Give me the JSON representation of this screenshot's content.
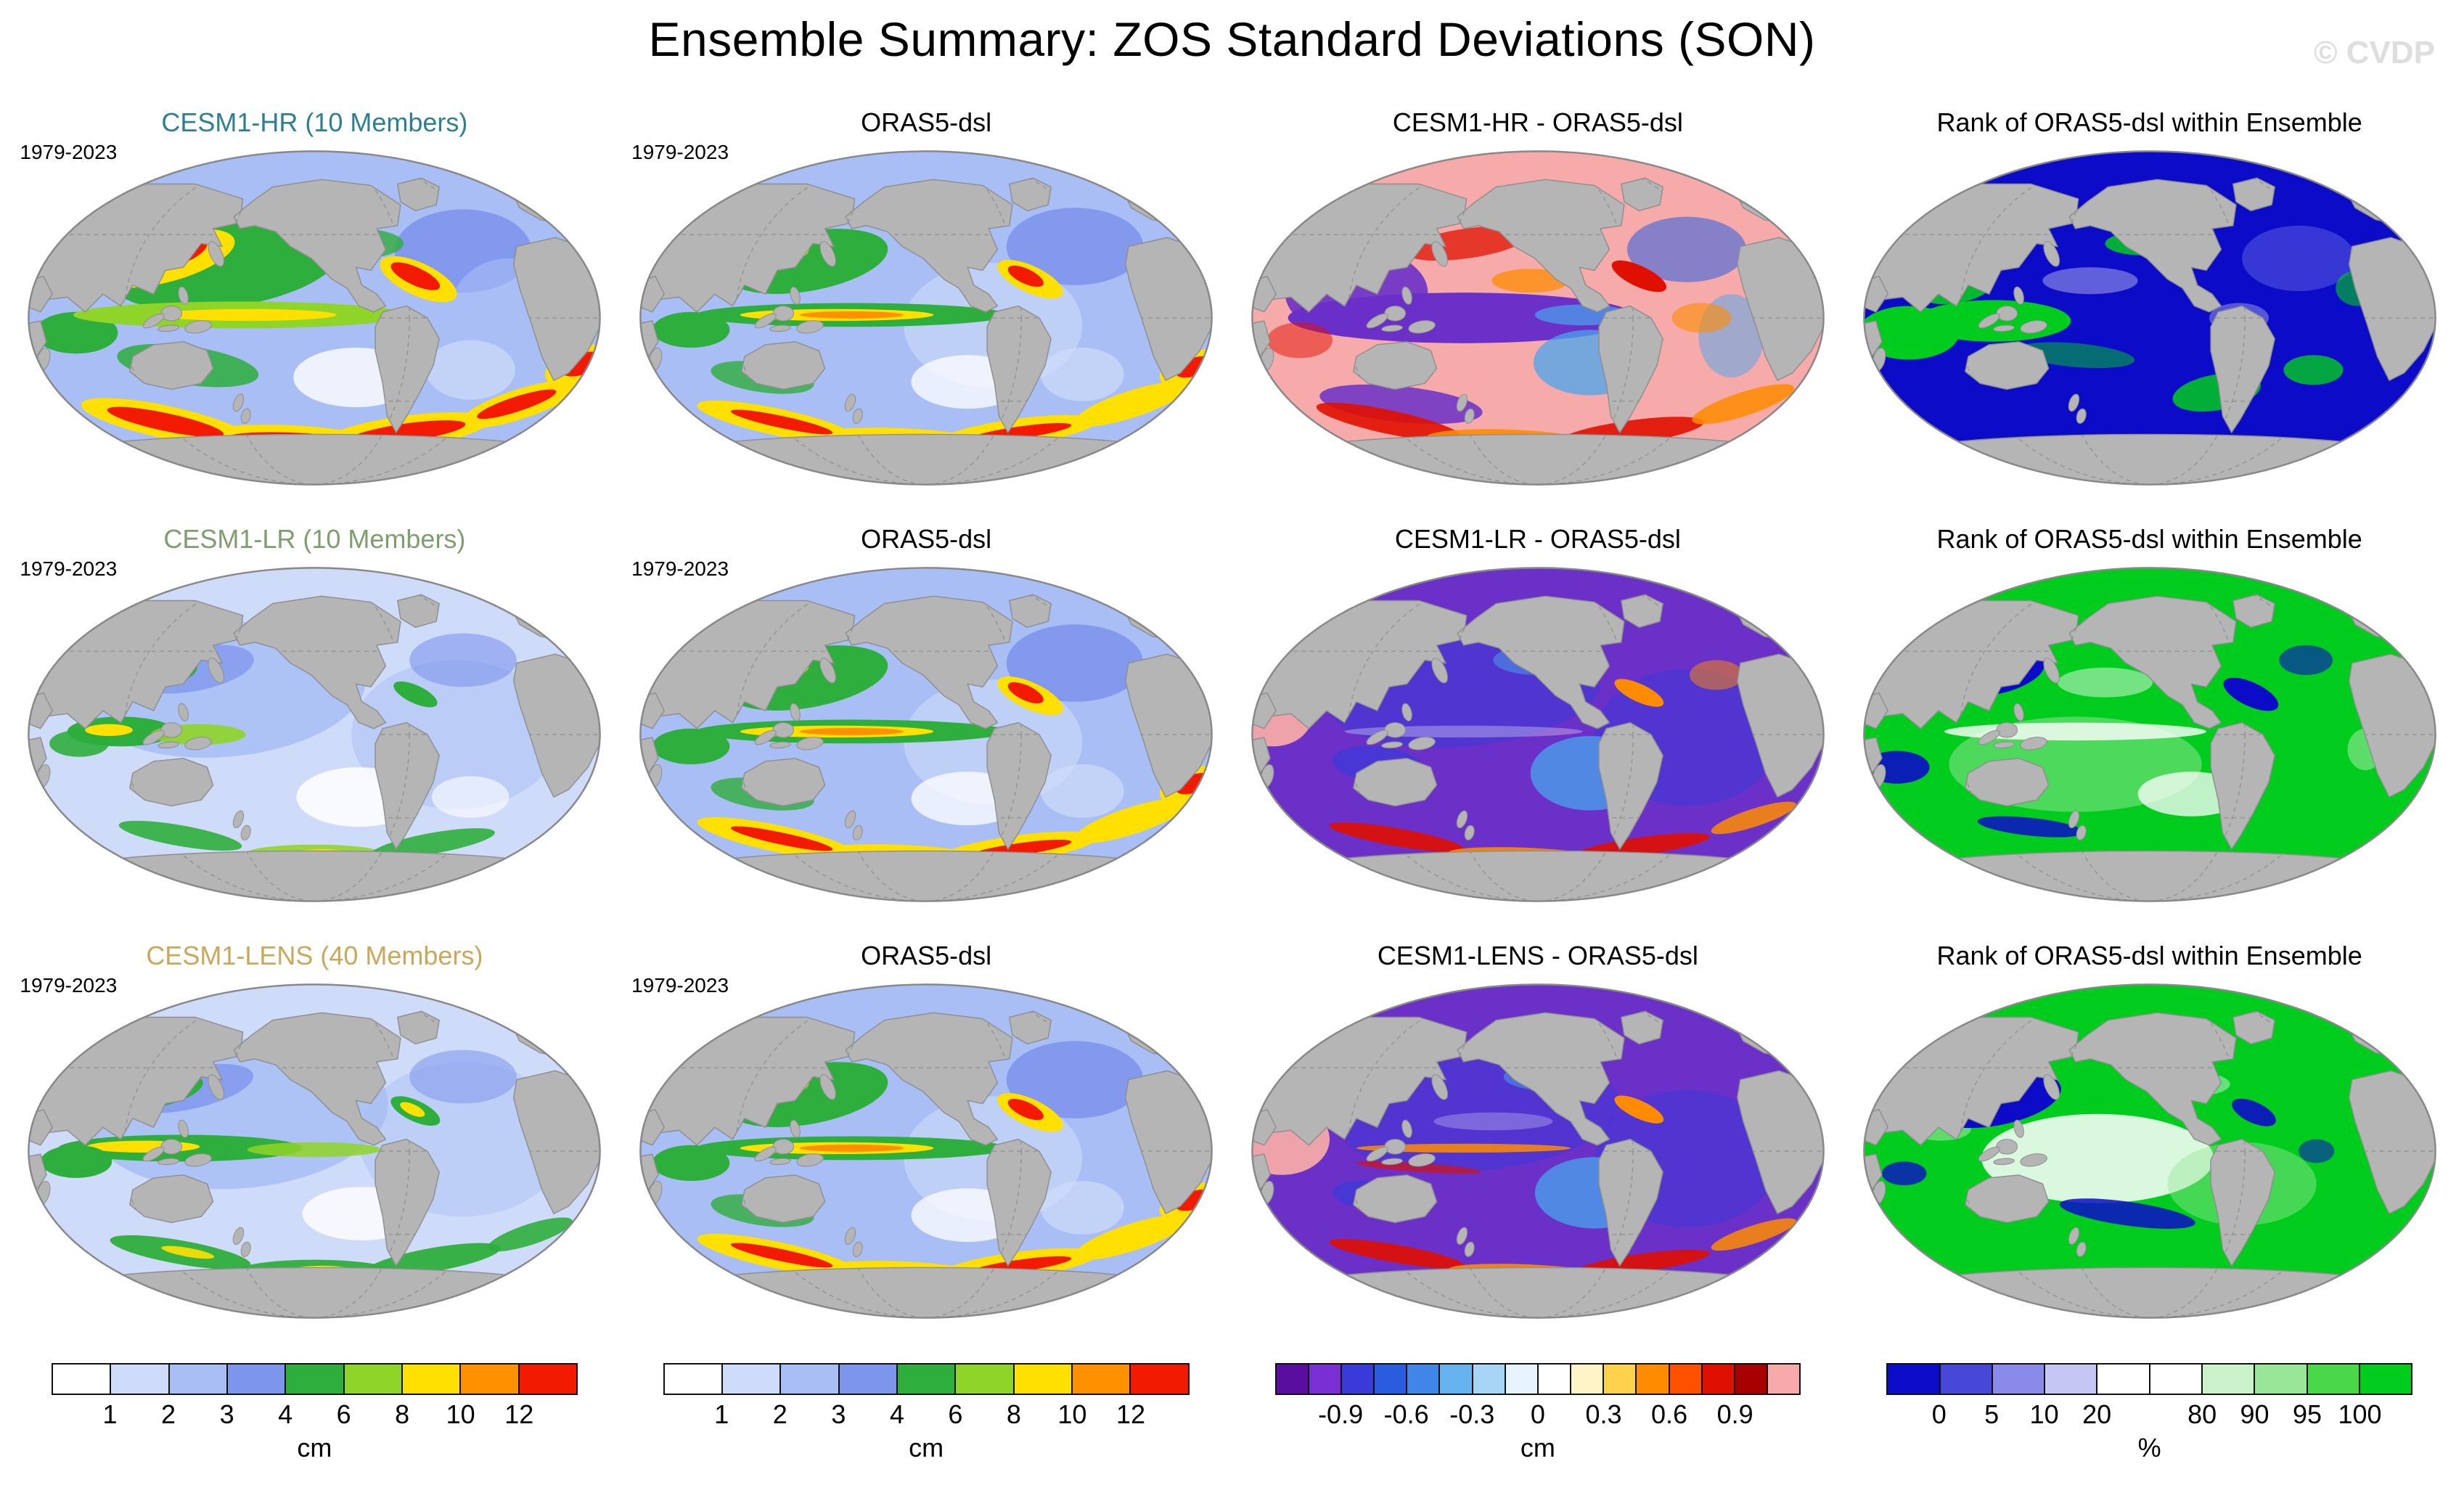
{
  "title": "Ensemble Summary: ZOS Standard Deviations (SON)",
  "watermark": "© CVDP",
  "rows": [
    {
      "model_title": "CESM1-HR (10 Members)",
      "model_color": "#2e7f8f",
      "period": "1979-2023",
      "obs_title": "ORAS5-dsl",
      "diff_title": "CESM1-HR - ORAS5-dsl",
      "rank_title": "Rank of ORAS5-dsl within Ensemble"
    },
    {
      "model_title": "CESM1-LR (10 Members)",
      "model_color": "#7f9e70",
      "period": "1979-2023",
      "obs_title": "ORAS5-dsl",
      "diff_title": "CESM1-LR - ORAS5-dsl",
      "rank_title": "Rank of ORAS5-dsl within Ensemble"
    },
    {
      "model_title": "CESM1-LENS (40 Members)",
      "model_color": "#c7a85c",
      "period": "1979-2023",
      "obs_title": "ORAS5-dsl",
      "diff_title": "CESM1-LENS - ORAS5-dsl",
      "rank_title": "Rank of ORAS5-dsl within Ensemble"
    }
  ],
  "colorbars": [
    {
      "name": "stddev-model-scale",
      "unit": "cm",
      "ticks": [
        "1",
        "2",
        "3",
        "4",
        "6",
        "8",
        "10",
        "12"
      ],
      "tick_boundaries": [
        1,
        2,
        3,
        4,
        5,
        6,
        7,
        8
      ],
      "colors": [
        "#ffffff",
        "#cfdcf9",
        "#a8bef5",
        "#7e95ec",
        "#2eae3c",
        "#8fd428",
        "#ffe000",
        "#ff9000",
        "#f21a00"
      ]
    },
    {
      "name": "stddev-obs-scale",
      "unit": "cm",
      "ticks": [
        "1",
        "2",
        "3",
        "4",
        "6",
        "8",
        "10",
        "12"
      ],
      "tick_boundaries": [
        1,
        2,
        3,
        4,
        5,
        6,
        7,
        8
      ],
      "colors": [
        "#ffffff",
        "#cfdcf9",
        "#a8bef5",
        "#7e95ec",
        "#2eae3c",
        "#8fd428",
        "#ffe000",
        "#ff9000",
        "#f21a00"
      ]
    },
    {
      "name": "difference-scale",
      "unit": "cm",
      "ticks": [
        "-0.9",
        "-0.6",
        "-0.3",
        "0",
        "0.3",
        "0.6",
        "0.9"
      ],
      "tick_boundaries": [
        2,
        4,
        6,
        8,
        10,
        12,
        14
      ],
      "colors": [
        "#5a0ea0",
        "#7a2fd4",
        "#3a3ad8",
        "#2a5ce0",
        "#3f86e8",
        "#66b3ef",
        "#a8d4f5",
        "#e8f4fd",
        "#ffffff",
        "#fff3c8",
        "#ffd24d",
        "#ff8c00",
        "#ff5000",
        "#e01000",
        "#a80000",
        "#f6aaaa"
      ]
    },
    {
      "name": "rank-scale",
      "unit": "%",
      "ticks": [
        "0",
        "5",
        "10",
        "20",
        "80",
        "90",
        "95",
        "100"
      ],
      "tick_boundaries": [
        1,
        2,
        3,
        4,
        6,
        7,
        8,
        9
      ],
      "colors": [
        "#0c0cc8",
        "#4747d8",
        "#8a8ae8",
        "#c6c6f4",
        "#ffffff",
        "#ffffff",
        "#ccf2cc",
        "#99e699",
        "#4ad84a",
        "#00cc1e"
      ]
    }
  ],
  "chart_data": {
    "type": "heatmap",
    "title": "Ensemble Summary: ZOS Standard Deviations (SON)",
    "variable": "ZOS standard deviation",
    "season": "SON",
    "period": "1979-2023",
    "layout": "3 rows x 4 columns of global ocean maps (elliptical projection), shared colorbars per column at bottom",
    "panels": [
      {
        "row": 1,
        "col": 1,
        "title": "CESM1-HR (10 Members)",
        "period": "1979-2023",
        "units": "cm"
      },
      {
        "row": 1,
        "col": 2,
        "title": "ORAS5-dsl",
        "period": "1979-2023",
        "units": "cm"
      },
      {
        "row": 1,
        "col": 3,
        "title": "CESM1-HR - ORAS5-dsl",
        "units": "cm"
      },
      {
        "row": 1,
        "col": 4,
        "title": "Rank of ORAS5-dsl within Ensemble",
        "units": "%"
      },
      {
        "row": 2,
        "col": 1,
        "title": "CESM1-LR (10 Members)",
        "period": "1979-2023",
        "units": "cm"
      },
      {
        "row": 2,
        "col": 2,
        "title": "ORAS5-dsl",
        "period": "1979-2023",
        "units": "cm"
      },
      {
        "row": 2,
        "col": 3,
        "title": "CESM1-LR - ORAS5-dsl",
        "units": "cm"
      },
      {
        "row": 2,
        "col": 4,
        "title": "Rank of ORAS5-dsl within Ensemble",
        "units": "%"
      },
      {
        "row": 3,
        "col": 1,
        "title": "CESM1-LENS (40 Members)",
        "period": "1979-2023",
        "units": "cm"
      },
      {
        "row": 3,
        "col": 2,
        "title": "ORAS5-dsl",
        "period": "1979-2023",
        "units": "cm"
      },
      {
        "row": 3,
        "col": 3,
        "title": "CESM1-LENS - ORAS5-dsl",
        "units": "cm"
      },
      {
        "row": 3,
        "col": 4,
        "title": "Rank of ORAS5-dsl within Ensemble",
        "units": "%"
      }
    ],
    "scales": [
      {
        "applies_to": "columns 1-2",
        "units": "cm",
        "tick_values": [
          1,
          2,
          3,
          4,
          6,
          8,
          10,
          12
        ],
        "palette": "white / blues / greens / yellow / orange / red"
      },
      {
        "applies_to": "column 3",
        "units": "cm",
        "tick_values": [
          -0.9,
          -0.6,
          -0.3,
          0,
          0.3,
          0.6,
          0.9
        ],
        "palette": "purple-blue-white-yellow-red-pink diverging"
      },
      {
        "applies_to": "column 4",
        "units": "%",
        "tick_values": [
          0,
          5,
          10,
          20,
          80,
          90,
          95,
          100
        ],
        "palette": "dark blue to white to bright green"
      }
    ]
  }
}
